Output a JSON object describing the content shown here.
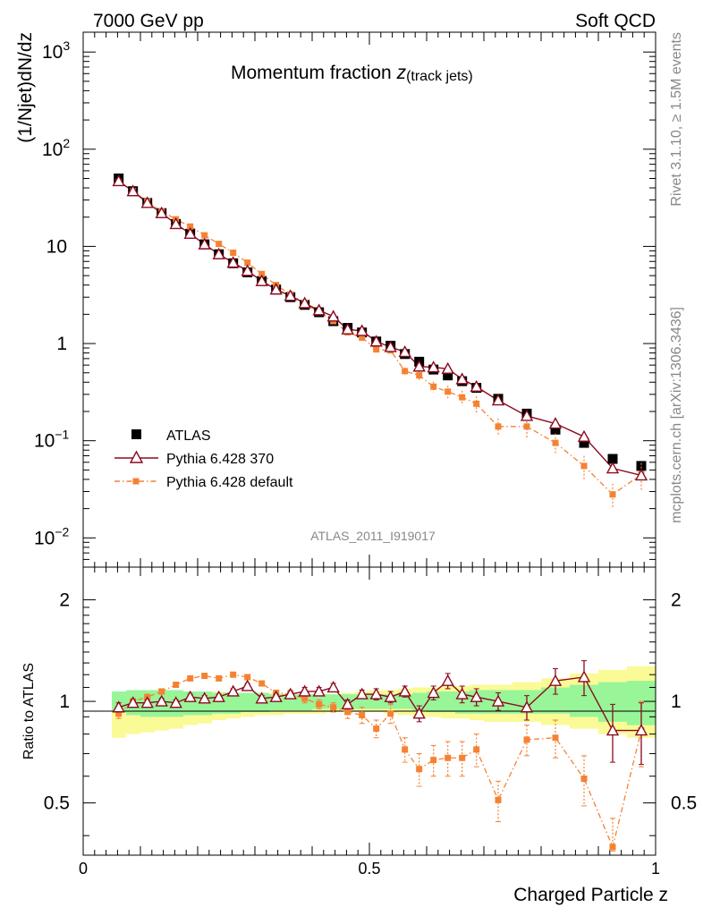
{
  "header": {
    "left": "7000 GeV pp",
    "right": "Soft QCD"
  },
  "side_labels": {
    "rivet": "Rivet 3.1.10, ≥ 1.5M events",
    "mcplots": "mcplots.cern.ch [arXiv:1306.3436]"
  },
  "chart_data": {
    "type": "scatter",
    "title": "Momentum fraction ",
    "title_symbol": "z",
    "title_subscript": "(track jets)",
    "analysis_id": "ATLAS_2011_I919017",
    "xlabel": "Charged Particle z",
    "ylabel": "(1/Njet)dN/dz",
    "ratio_ylabel": "Ratio to ATLAS",
    "xlim": [
      0,
      1
    ],
    "ylim": [
      0.005,
      1600
    ],
    "ratio_ylim": [
      0.35,
      2.5
    ],
    "x_ticks": [
      {
        "value": 0,
        "label": "0"
      },
      {
        "value": 0.5,
        "label": "0.5"
      },
      {
        "value": 1,
        "label": "1"
      }
    ],
    "y_ticks": [
      {
        "value": 0.01,
        "base": "10",
        "exp": "−2"
      },
      {
        "value": 0.1,
        "base": "10",
        "exp": "−1"
      },
      {
        "value": 1,
        "base": "1",
        "exp": ""
      },
      {
        "value": 10,
        "base": "10",
        "exp": ""
      },
      {
        "value": 100,
        "base": "10",
        "exp": "2"
      },
      {
        "value": 1000,
        "base": "10",
        "exp": "3"
      }
    ],
    "ratio_ticks": [
      {
        "value": 0.5,
        "label": "0.5"
      },
      {
        "value": 1,
        "label": "1"
      },
      {
        "value": 2,
        "label": "2"
      }
    ],
    "legend": [
      "ATLAS",
      "Pythia 6.428 370",
      "Pythia 6.428 default"
    ],
    "legend_position": "bottom-left",
    "bins": [
      [
        0.05,
        0.075
      ],
      [
        0.075,
        0.1
      ],
      [
        0.1,
        0.125
      ],
      [
        0.125,
        0.15
      ],
      [
        0.15,
        0.175
      ],
      [
        0.175,
        0.2
      ],
      [
        0.2,
        0.225
      ],
      [
        0.225,
        0.25
      ],
      [
        0.25,
        0.275
      ],
      [
        0.275,
        0.3
      ],
      [
        0.3,
        0.325
      ],
      [
        0.325,
        0.35
      ],
      [
        0.35,
        0.375
      ],
      [
        0.375,
        0.4
      ],
      [
        0.4,
        0.425
      ],
      [
        0.425,
        0.45
      ],
      [
        0.45,
        0.475
      ],
      [
        0.475,
        0.5
      ],
      [
        0.5,
        0.525
      ],
      [
        0.525,
        0.55
      ],
      [
        0.55,
        0.575
      ],
      [
        0.575,
        0.6
      ],
      [
        0.6,
        0.625
      ],
      [
        0.625,
        0.65
      ],
      [
        0.65,
        0.675
      ],
      [
        0.675,
        0.7
      ],
      [
        0.7,
        0.75
      ],
      [
        0.75,
        0.8
      ],
      [
        0.8,
        0.85
      ],
      [
        0.85,
        0.9
      ],
      [
        0.9,
        0.95
      ],
      [
        0.95,
        1.0
      ]
    ],
    "x": [
      0.062,
      0.087,
      0.112,
      0.137,
      0.162,
      0.187,
      0.212,
      0.237,
      0.262,
      0.287,
      0.312,
      0.337,
      0.362,
      0.387,
      0.412,
      0.437,
      0.462,
      0.487,
      0.512,
      0.537,
      0.562,
      0.587,
      0.612,
      0.637,
      0.662,
      0.687,
      0.725,
      0.775,
      0.825,
      0.875,
      0.925,
      0.975
    ],
    "series": [
      {
        "name": "ATLAS",
        "values": [
          50,
          37,
          28,
          22,
          17,
          13.5,
          10.5,
          8.3,
          6.7,
          5.4,
          4.4,
          3.6,
          3.0,
          2.5,
          2.1,
          1.7,
          1.45,
          1.3,
          1.05,
          0.95,
          0.78,
          0.65,
          0.54,
          0.47,
          0.41,
          0.35,
          0.27,
          0.19,
          0.13,
          0.095,
          0.065,
          0.055
        ]
      },
      {
        "name": "Pythia 6.428 370",
        "values": [
          47,
          37,
          28,
          22,
          17,
          13.5,
          10.5,
          8.3,
          6.8,
          5.6,
          4.4,
          3.6,
          3.1,
          2.6,
          2.2,
          1.9,
          1.4,
          1.35,
          1.05,
          0.92,
          0.82,
          0.58,
          0.57,
          0.55,
          0.43,
          0.36,
          0.26,
          0.18,
          0.15,
          0.11,
          0.052,
          0.044
        ],
        "ratio": [
          0.96,
          0.99,
          0.99,
          1.0,
          0.99,
          1.03,
          1.02,
          1.03,
          1.07,
          1.11,
          1.02,
          1.03,
          1.05,
          1.07,
          1.07,
          1.1,
          0.98,
          1.05,
          1.05,
          1.03,
          1.07,
          0.92,
          1.06,
          1.15,
          1.05,
          1.03,
          1.0,
          0.96,
          1.15,
          1.18,
          0.82,
          0.82
        ],
        "ratio_err": [
          0.03,
          0.02,
          0.02,
          0.02,
          0.02,
          0.02,
          0.02,
          0.02,
          0.02,
          0.02,
          0.02,
          0.02,
          0.02,
          0.03,
          0.03,
          0.03,
          0.03,
          0.03,
          0.04,
          0.04,
          0.04,
          0.05,
          0.05,
          0.06,
          0.06,
          0.06,
          0.06,
          0.08,
          0.1,
          0.14,
          0.16,
          0.17
        ]
      },
      {
        "name": "Pythia 6.428 default",
        "values": [
          46,
          37,
          29,
          23,
          19,
          16,
          13,
          10.6,
          8.6,
          6.8,
          5.2,
          4.0,
          3.2,
          2.6,
          2.1,
          1.7,
          1.3,
          1.15,
          0.87,
          0.85,
          0.52,
          0.47,
          0.36,
          0.32,
          0.28,
          0.24,
          0.14,
          0.14,
          0.095,
          0.055,
          0.028,
          0.045
        ],
        "ratio": [
          0.92,
          1.0,
          1.03,
          1.07,
          1.12,
          1.17,
          1.19,
          1.17,
          1.2,
          1.18,
          1.13,
          1.06,
          1.05,
          1.02,
          0.98,
          0.96,
          0.93,
          0.91,
          0.83,
          0.92,
          0.72,
          0.63,
          0.67,
          0.68,
          0.68,
          0.72,
          0.51,
          0.77,
          0.78,
          0.59,
          0.37,
          0.82
        ],
        "ratio_err": [
          0.03,
          0.02,
          0.02,
          0.02,
          0.02,
          0.02,
          0.02,
          0.02,
          0.02,
          0.02,
          0.02,
          0.02,
          0.03,
          0.03,
          0.03,
          0.03,
          0.04,
          0.05,
          0.05,
          0.06,
          0.06,
          0.07,
          0.07,
          0.08,
          0.08,
          0.08,
          0.07,
          0.08,
          0.1,
          0.1,
          0.08,
          0.18
        ]
      }
    ],
    "uncertainty_bands": {
      "inner": [
        [
          0.93,
          1.07
        ],
        [
          0.91,
          1.08
        ],
        [
          0.9,
          1.08
        ],
        [
          0.9,
          1.08
        ],
        [
          0.9,
          1.08
        ],
        [
          0.91,
          1.07
        ],
        [
          0.91,
          1.07
        ],
        [
          0.92,
          1.06
        ],
        [
          0.92,
          1.06
        ],
        [
          0.93,
          1.06
        ],
        [
          0.93,
          1.06
        ],
        [
          0.94,
          1.05
        ],
        [
          0.94,
          1.05
        ],
        [
          0.94,
          1.05
        ],
        [
          0.95,
          1.05
        ],
        [
          0.95,
          1.05
        ],
        [
          0.95,
          1.05
        ],
        [
          0.95,
          1.05
        ],
        [
          0.95,
          1.05
        ],
        [
          0.95,
          1.05
        ],
        [
          0.95,
          1.05
        ],
        [
          0.94,
          1.06
        ],
        [
          0.93,
          1.07
        ],
        [
          0.93,
          1.07
        ],
        [
          0.92,
          1.07
        ],
        [
          0.92,
          1.08
        ],
        [
          0.92,
          1.08
        ],
        [
          0.92,
          1.08
        ],
        [
          0.92,
          1.1
        ],
        [
          0.9,
          1.12
        ],
        [
          0.87,
          1.14
        ],
        [
          0.85,
          1.15
        ]
      ],
      "outer": [
        [
          0.78,
          1.07
        ],
        [
          0.8,
          1.08
        ],
        [
          0.81,
          1.08
        ],
        [
          0.82,
          1.08
        ],
        [
          0.83,
          1.08
        ],
        [
          0.85,
          1.07
        ],
        [
          0.86,
          1.07
        ],
        [
          0.88,
          1.07
        ],
        [
          0.89,
          1.06
        ],
        [
          0.9,
          1.06
        ],
        [
          0.91,
          1.06
        ],
        [
          0.91,
          1.06
        ],
        [
          0.92,
          1.05
        ],
        [
          0.92,
          1.05
        ],
        [
          0.92,
          1.05
        ],
        [
          0.93,
          1.05
        ],
        [
          0.93,
          1.06
        ],
        [
          0.93,
          1.07
        ],
        [
          0.93,
          1.08
        ],
        [
          0.92,
          1.08
        ],
        [
          0.91,
          1.09
        ],
        [
          0.9,
          1.1
        ],
        [
          0.9,
          1.1
        ],
        [
          0.89,
          1.11
        ],
        [
          0.89,
          1.11
        ],
        [
          0.88,
          1.12
        ],
        [
          0.87,
          1.12
        ],
        [
          0.87,
          1.14
        ],
        [
          0.85,
          1.17
        ],
        [
          0.83,
          1.21
        ],
        [
          0.8,
          1.24
        ],
        [
          0.78,
          1.27
        ]
      ]
    },
    "colors": {
      "atlas": "#000000",
      "pythia370": "#8b0a1e",
      "pythia_default": "#f58233",
      "band_inner": "#98f598",
      "band_outer": "#fafa96"
    }
  }
}
